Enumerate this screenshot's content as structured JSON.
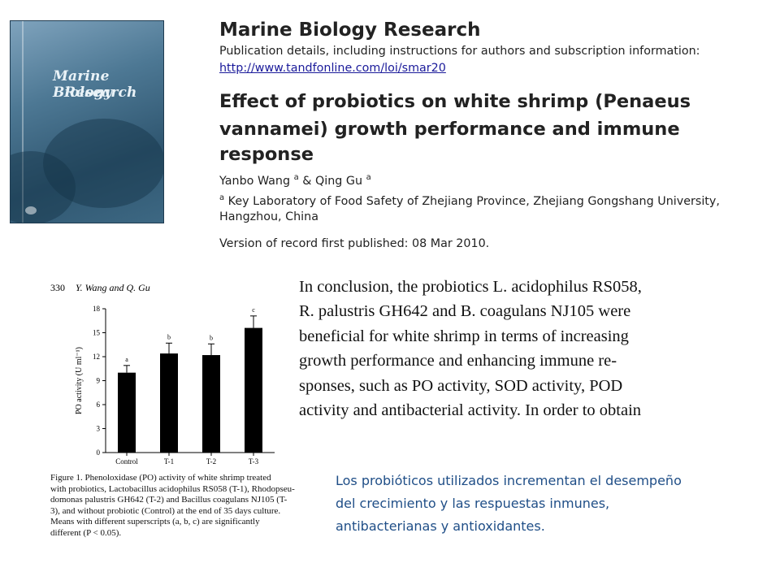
{
  "cover": {
    "title_line_1": "Marine Biology",
    "title_line_2": "Research"
  },
  "header": {
    "journal_title": "Marine Biology Research",
    "publication_details": "Publication details, including instructions for authors and subscription information:",
    "url": "http://www.tandfonline.com/loi/smar20",
    "article_title_lines": [
      "Effect of probiotics on white shrimp (Penaeus",
      "vannamei) growth performance and immune",
      "response"
    ],
    "authors": {
      "author_1": "Yanbo Wang",
      "sep": " & ",
      "author_2": "Qing Gu",
      "sup": "a"
    },
    "affiliation": {
      "sup": "a",
      "line_1": " Key Laboratory of Food Safety of Zhejiang Province, Zhejiang Gongshang University,",
      "line_2": "Hangzhou, China"
    },
    "version": "Version of record first published: 08 Mar 2010."
  },
  "figure": {
    "page_number": "330",
    "running_head": "Y. Wang and Q. Gu",
    "caption_lines": [
      "Figure 1. Phenoloxidase (PO) activity of white shrimp treated",
      "with probiotics, Lactobacillus acidophilus RS058 (T-1), Rhodopseu-",
      "domonas palustris GH642 (T-2) and Bacillus coagulans NJ105 (T-",
      "3), and without probiotic (Control) at the end of 35 days culture.",
      "Means with different superscripts (a, b, c) are significantly",
      "different (P < 0.05)."
    ]
  },
  "chart_data": {
    "type": "bar",
    "categories": [
      "Control",
      "T-1",
      "T-2",
      "T-3"
    ],
    "values": [
      10.0,
      12.4,
      12.2,
      15.6
    ],
    "errors": [
      0.9,
      1.3,
      1.4,
      1.5
    ],
    "superscripts": [
      "a",
      "b",
      "b",
      "c"
    ],
    "ylabel": "PO activity (U ml⁻¹)",
    "xlabel": "",
    "ylim": [
      0,
      18
    ],
    "yticks": [
      0,
      3,
      6,
      9,
      12,
      15,
      18
    ],
    "bar_color": "#000000",
    "grid": false
  },
  "conclusion": {
    "lines": [
      "In conclusion, the probiotics L. acidophilus RS058,",
      "R. palustris GH642 and B. coagulans NJ105 were",
      "beneficial for white shrimp in terms of increasing",
      "growth performance and enhancing immune re-",
      "sponses, such as PO activity, SOD activity, POD",
      "activity and antibacterial activity. In order to obtain"
    ]
  },
  "summary": {
    "lines": [
      "Los probióticos utilizados incrementan el desempeño",
      "del crecimiento y las respuestas inmunes,",
      "antibacterianas y antioxidantes."
    ],
    "color": "#1f4e87"
  }
}
